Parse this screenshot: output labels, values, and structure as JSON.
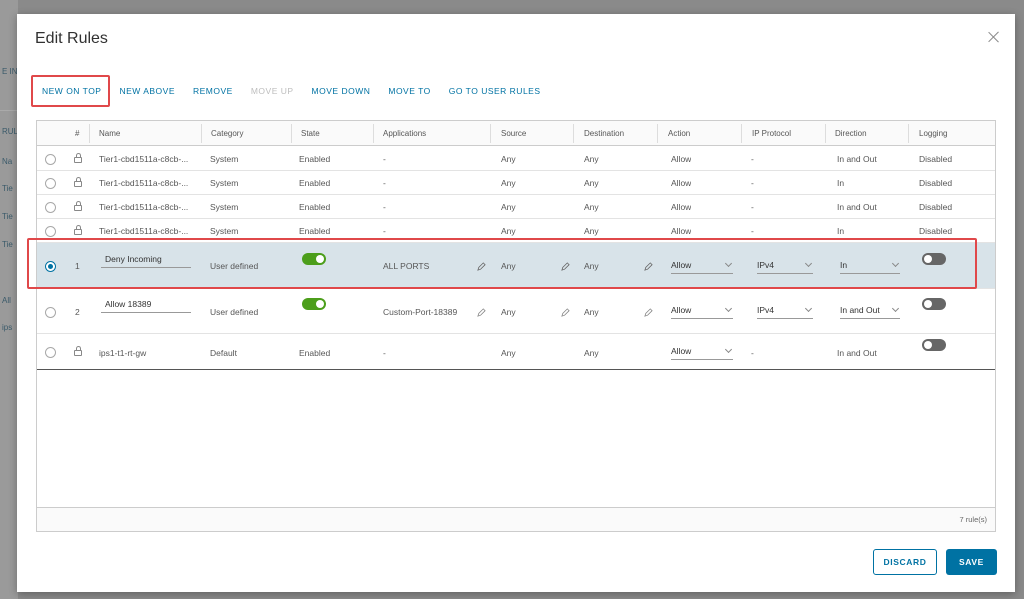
{
  "background": {
    "fragments": [
      "E IN",
      "RUL",
      "Na",
      "Tie",
      "Tie",
      "Tie",
      "All",
      "ips"
    ]
  },
  "dialog": {
    "title": "Edit Rules",
    "close_icon": "close-icon"
  },
  "toolbar": {
    "new_on_top": "NEW ON TOP",
    "new_above": "NEW ABOVE",
    "remove": "REMOVE",
    "move_up": "MOVE UP",
    "move_down": "MOVE DOWN",
    "move_to": "MOVE TO",
    "go_to_user_rules": "GO TO USER RULES"
  },
  "columns": {
    "num": "#",
    "name": "Name",
    "category": "Category",
    "state": "State",
    "applications": "Applications",
    "source": "Source",
    "destination": "Destination",
    "action": "Action",
    "ip_protocol": "IP Protocol",
    "direction": "Direction",
    "logging": "Logging"
  },
  "rows": [
    {
      "num": "",
      "name": "Tier1-cbd1511a-c8cb-...",
      "category": "System",
      "state": "Enabled",
      "applications": "-",
      "source": "Any",
      "destination": "Any",
      "action": "Allow",
      "ip_protocol": "-",
      "direction": "In and Out",
      "logging": "Disabled"
    },
    {
      "num": "",
      "name": "Tier1-cbd1511a-c8cb-...",
      "category": "System",
      "state": "Enabled",
      "applications": "-",
      "source": "Any",
      "destination": "Any",
      "action": "Allow",
      "ip_protocol": "-",
      "direction": "In",
      "logging": "Disabled"
    },
    {
      "num": "",
      "name": "Tier1-cbd1511a-c8cb-...",
      "category": "System",
      "state": "Enabled",
      "applications": "-",
      "source": "Any",
      "destination": "Any",
      "action": "Allow",
      "ip_protocol": "-",
      "direction": "In and Out",
      "logging": "Disabled"
    },
    {
      "num": "",
      "name": "Tier1-cbd1511a-c8cb-...",
      "category": "System",
      "state": "Enabled",
      "applications": "-",
      "source": "Any",
      "destination": "Any",
      "action": "Allow",
      "ip_protocol": "-",
      "direction": "In",
      "logging": "Disabled"
    },
    {
      "num": "1",
      "name": "Deny Incoming",
      "category": "User defined",
      "state_on": true,
      "applications": "ALL PORTS",
      "source": "Any",
      "destination": "Any",
      "action": "Allow",
      "ip_protocol": "IPv4",
      "direction": "In",
      "logging_on": false
    },
    {
      "num": "2",
      "name": "Allow 18389",
      "category": "User defined",
      "state_on": true,
      "applications": "Custom-Port-18389",
      "source": "Any",
      "destination": "Any",
      "action": "Allow",
      "ip_protocol": "IPv4",
      "direction": "In and Out",
      "logging_on": false
    },
    {
      "num": "",
      "name": "ips1-t1-rt-gw",
      "category": "Default",
      "state": "Enabled",
      "applications": "-",
      "source": "Any",
      "destination": "Any",
      "action": "Allow",
      "ip_protocol": "-",
      "direction": "In and Out",
      "logging_on": false
    }
  ],
  "footer": {
    "count": "7 rule(s)"
  },
  "buttons": {
    "discard": "DISCARD",
    "save": "SAVE"
  },
  "colors": {
    "accent": "#0072a3",
    "highlight": "#e0484a",
    "toggle_on": "#4c9e1b",
    "selected_row": "#d8e3e9"
  }
}
